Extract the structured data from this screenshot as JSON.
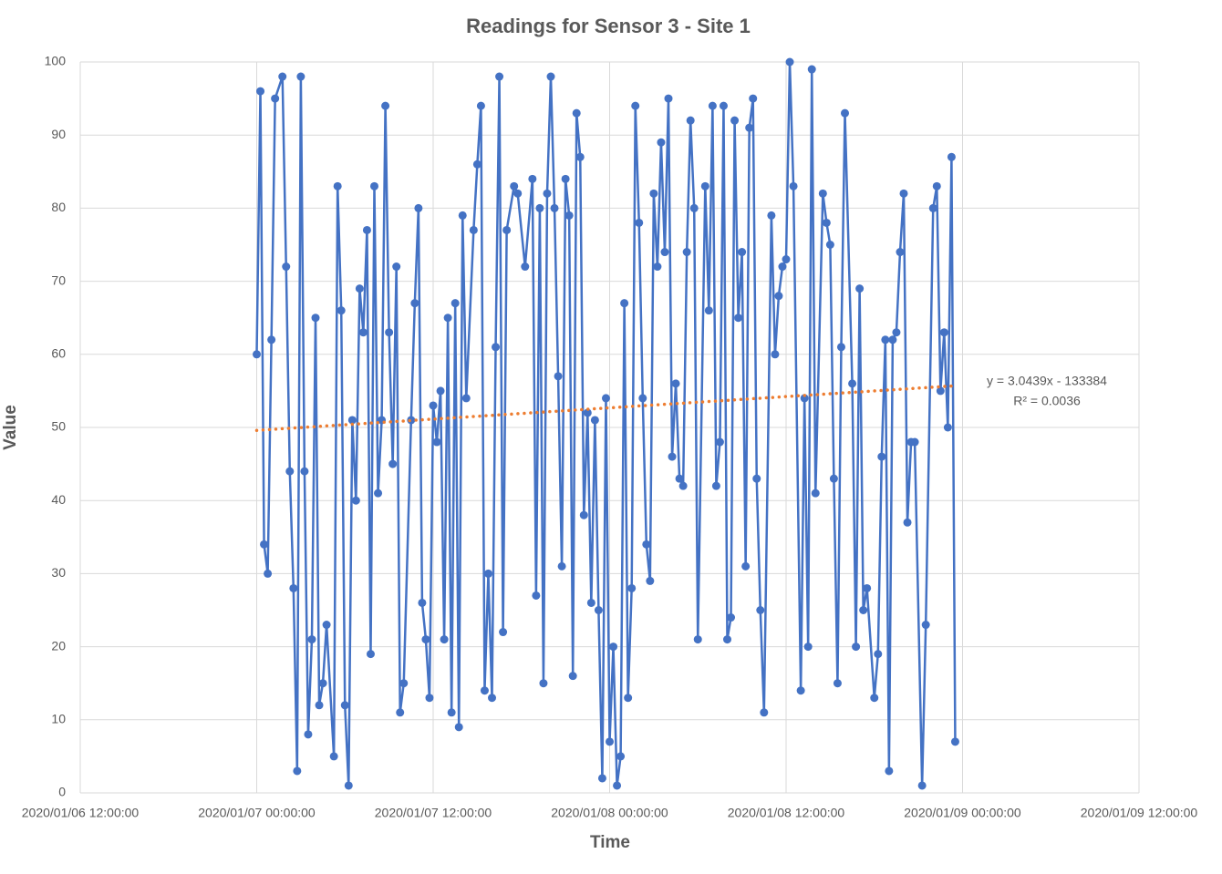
{
  "chart_data": {
    "type": "line",
    "title": "Readings for Sensor 3 - Site 1",
    "x_label": "Time",
    "y_label": "Value",
    "x": [
      "2020/01/07 00:00:00",
      "2020/01/07 00:15:00",
      "2020/01/07 00:30:00",
      "2020/01/07 00:45:00",
      "2020/01/07 01:00:00",
      "2020/01/07 01:15:00",
      "2020/01/07 01:45:00",
      "2020/01/07 02:00:00",
      "2020/01/07 02:15:00",
      "2020/01/07 02:30:00",
      "2020/01/07 02:45:00",
      "2020/01/07 03:00:00",
      "2020/01/07 03:15:00",
      "2020/01/07 03:30:00",
      "2020/01/07 03:45:00",
      "2020/01/07 04:00:00",
      "2020/01/07 04:15:00",
      "2020/01/07 04:30:00",
      "2020/01/07 04:45:00",
      "2020/01/07 05:15:00",
      "2020/01/07 05:30:00",
      "2020/01/07 05:45:00",
      "2020/01/07 06:00:00",
      "2020/01/07 06:15:00",
      "2020/01/07 06:30:00",
      "2020/01/07 06:45:00",
      "2020/01/07 07:00:00",
      "2020/01/07 07:15:00",
      "2020/01/07 07:30:00",
      "2020/01/07 07:45:00",
      "2020/01/07 08:00:00",
      "2020/01/07 08:15:00",
      "2020/01/07 08:30:00",
      "2020/01/07 08:45:00",
      "2020/01/07 09:00:00",
      "2020/01/07 09:15:00",
      "2020/01/07 09:30:00",
      "2020/01/07 09:45:00",
      "2020/01/07 10:00:00",
      "2020/01/07 10:30:00",
      "2020/01/07 10:45:00",
      "2020/01/07 11:00:00",
      "2020/01/07 11:15:00",
      "2020/01/07 11:30:00",
      "2020/01/07 11:45:00",
      "2020/01/07 12:00:00",
      "2020/01/07 12:15:00",
      "2020/01/07 12:30:00",
      "2020/01/07 12:45:00",
      "2020/01/07 13:00:00",
      "2020/01/07 13:15:00",
      "2020/01/07 13:30:00",
      "2020/01/07 13:45:00",
      "2020/01/07 14:00:00",
      "2020/01/07 14:15:00",
      "2020/01/07 14:45:00",
      "2020/01/07 15:00:00",
      "2020/01/07 15:15:00",
      "2020/01/07 15:30:00",
      "2020/01/07 15:45:00",
      "2020/01/07 16:00:00",
      "2020/01/07 16:15:00",
      "2020/01/07 16:30:00",
      "2020/01/07 16:45:00",
      "2020/01/07 17:00:00",
      "2020/01/07 17:30:00",
      "2020/01/07 17:45:00",
      "2020/01/07 18:15:00",
      "2020/01/07 18:45:00",
      "2020/01/07 19:00:00",
      "2020/01/07 19:15:00",
      "2020/01/07 19:30:00",
      "2020/01/07 19:45:00",
      "2020/01/07 20:00:00",
      "2020/01/07 20:15:00",
      "2020/01/07 20:30:00",
      "2020/01/07 20:45:00",
      "2020/01/07 21:00:00",
      "2020/01/07 21:15:00",
      "2020/01/07 21:30:00",
      "2020/01/07 21:45:00",
      "2020/01/07 22:00:00",
      "2020/01/07 22:15:00",
      "2020/01/07 22:30:00",
      "2020/01/07 22:45:00",
      "2020/01/07 23:00:00",
      "2020/01/07 23:15:00",
      "2020/01/07 23:30:00",
      "2020/01/07 23:45:00",
      "2020/01/08 00:00:00",
      "2020/01/08 00:15:00",
      "2020/01/08 00:30:00",
      "2020/01/08 00:45:00",
      "2020/01/08 01:00:00",
      "2020/01/08 01:15:00",
      "2020/01/08 01:30:00",
      "2020/01/08 01:45:00",
      "2020/01/08 02:00:00",
      "2020/01/08 02:15:00",
      "2020/01/08 02:30:00",
      "2020/01/08 02:45:00",
      "2020/01/08 03:00:00",
      "2020/01/08 03:15:00",
      "2020/01/08 03:30:00",
      "2020/01/08 03:45:00",
      "2020/01/08 04:00:00",
      "2020/01/08 04:15:00",
      "2020/01/08 04:30:00",
      "2020/01/08 04:45:00",
      "2020/01/08 05:00:00",
      "2020/01/08 05:15:00",
      "2020/01/08 05:30:00",
      "2020/01/08 05:45:00",
      "2020/01/08 06:00:00",
      "2020/01/08 06:30:00",
      "2020/01/08 06:45:00",
      "2020/01/08 07:00:00",
      "2020/01/08 07:15:00",
      "2020/01/08 07:30:00",
      "2020/01/08 07:45:00",
      "2020/01/08 08:00:00",
      "2020/01/08 08:15:00",
      "2020/01/08 08:30:00",
      "2020/01/08 08:45:00",
      "2020/01/08 09:00:00",
      "2020/01/08 09:15:00",
      "2020/01/08 09:30:00",
      "2020/01/08 09:45:00",
      "2020/01/08 10:00:00",
      "2020/01/08 10:15:00",
      "2020/01/08 10:30:00",
      "2020/01/08 11:00:00",
      "2020/01/08 11:15:00",
      "2020/01/08 11:30:00",
      "2020/01/08 11:45:00",
      "2020/01/08 12:00:00",
      "2020/01/08 12:15:00",
      "2020/01/08 12:30:00",
      "2020/01/08 13:00:00",
      "2020/01/08 13:15:00",
      "2020/01/08 13:30:00",
      "2020/01/08 13:45:00",
      "2020/01/08 14:00:00",
      "2020/01/08 14:30:00",
      "2020/01/08 14:45:00",
      "2020/01/08 15:00:00",
      "2020/01/08 15:15:00",
      "2020/01/08 15:30:00",
      "2020/01/08 15:45:00",
      "2020/01/08 16:00:00",
      "2020/01/08 16:30:00",
      "2020/01/08 16:45:00",
      "2020/01/08 17:00:00",
      "2020/01/08 17:15:00",
      "2020/01/08 17:30:00",
      "2020/01/08 18:00:00",
      "2020/01/08 18:15:00",
      "2020/01/08 18:30:00",
      "2020/01/08 18:45:00",
      "2020/01/08 19:00:00",
      "2020/01/08 19:15:00",
      "2020/01/08 19:30:00",
      "2020/01/08 19:45:00",
      "2020/01/08 20:00:00",
      "2020/01/08 20:15:00",
      "2020/01/08 20:30:00",
      "2020/01/08 20:45:00",
      "2020/01/08 21:15:00",
      "2020/01/08 21:30:00",
      "2020/01/08 22:00:00",
      "2020/01/08 22:15:00",
      "2020/01/08 22:30:00",
      "2020/01/08 22:45:00",
      "2020/01/08 23:00:00",
      "2020/01/08 23:15:00",
      "2020/01/08 23:30:00"
    ],
    "series": [
      {
        "name": "Sensor 3",
        "color": "#4472c4",
        "values": [
          60,
          96,
          34,
          30,
          62,
          95,
          98,
          72,
          44,
          28,
          3,
          98,
          44,
          8,
          21,
          65,
          12,
          15,
          23,
          5,
          83,
          66,
          12,
          1,
          51,
          40,
          69,
          63,
          77,
          19,
          83,
          41,
          51,
          94,
          63,
          45,
          72,
          11,
          15,
          51,
          67,
          80,
          26,
          21,
          13,
          53,
          48,
          55,
          21,
          65,
          11,
          67,
          9,
          79,
          54,
          77,
          86,
          94,
          14,
          30,
          13,
          61,
          98,
          22,
          77,
          83,
          82,
          72,
          84,
          27,
          80,
          15,
          82,
          98,
          80,
          57,
          31,
          84,
          79,
          16,
          93,
          87,
          38,
          52,
          26,
          51,
          25,
          2,
          54,
          7,
          20,
          1,
          5,
          67,
          13,
          28,
          94,
          78,
          54,
          34,
          29,
          82,
          72,
          89,
          74,
          95,
          46,
          56,
          43,
          42,
          74,
          92,
          80,
          21,
          83,
          66,
          94,
          42,
          48,
          94,
          21,
          24,
          92,
          65,
          74,
          31,
          91,
          95,
          43,
          25,
          11,
          79,
          60,
          68,
          72,
          73,
          100,
          83,
          14,
          54,
          20,
          99,
          41,
          82,
          78,
          75,
          43,
          15,
          61,
          93,
          56,
          20,
          69,
          25,
          28,
          13,
          19,
          46,
          62,
          3,
          62,
          63,
          74,
          82,
          37,
          48,
          48,
          1,
          23,
          80,
          83,
          55,
          63,
          50,
          87,
          7
        ]
      }
    ],
    "trendline": {
      "color": "#ed7d31",
      "x": [
        "2020/01/07 00:00:00",
        "2020/01/08 23:30:00"
      ],
      "values": [
        49.6,
        55.7
      ],
      "equation": "y = 3.0439x - 133384",
      "r_squared": "R² = 0.0036"
    },
    "xlim": [
      "2020/01/06 12:00:00",
      "2020/01/09 12:00:00"
    ],
    "xticks": [
      "2020/01/06 12:00:00",
      "2020/01/07 00:00:00",
      "2020/01/07 12:00:00",
      "2020/01/08 00:00:00",
      "2020/01/08 12:00:00",
      "2020/01/09 00:00:00",
      "2020/01/09 12:00:00"
    ],
    "ylim": [
      0,
      100
    ],
    "yticks": [
      0,
      10,
      20,
      30,
      40,
      50,
      60,
      70,
      80,
      90,
      100
    ],
    "grid": true
  }
}
